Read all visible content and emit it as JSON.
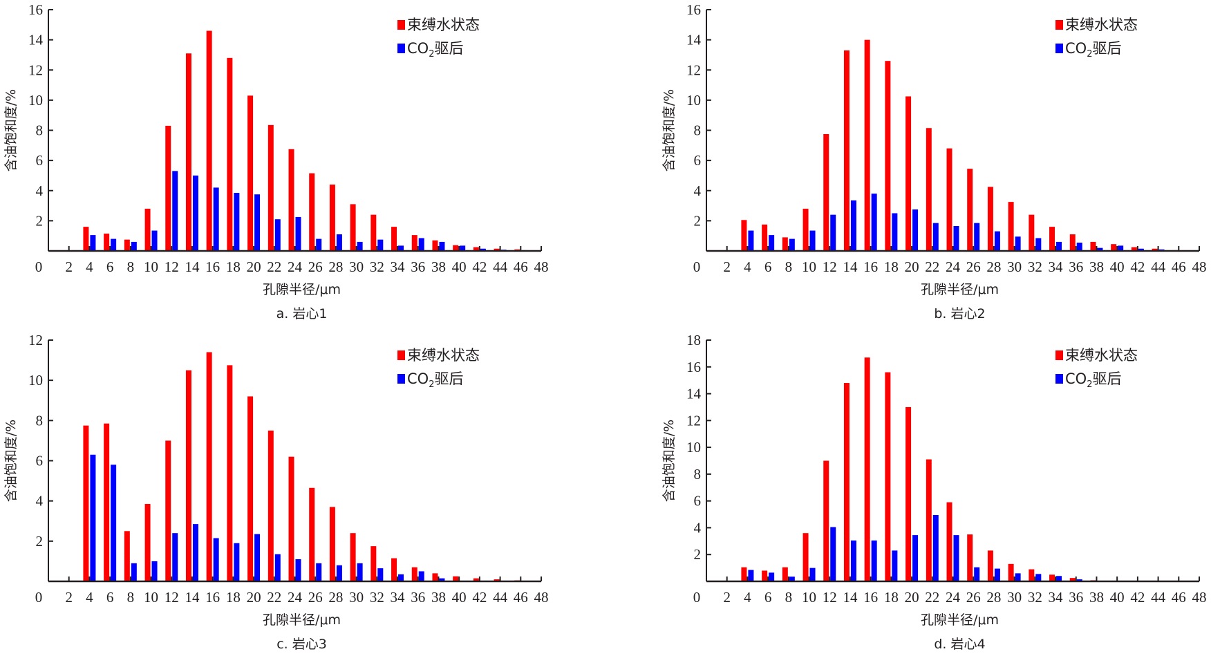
{
  "legend": {
    "series1_label": "束缚水状态",
    "series2_label_main": "CO",
    "series2_label_sub": "2",
    "series2_label_tail": "驱后"
  },
  "colors": {
    "series1": "#ff0000",
    "series2": "#0000ff",
    "axis": "#231f20"
  },
  "chart_data": [
    {
      "id": "a",
      "type": "bar",
      "caption": "a. 岩心1",
      "xlabel": "孔隙半径/μm",
      "ylabel": "含油饱和度/%",
      "xlim": [
        0,
        48
      ],
      "ylim": [
        0,
        16
      ],
      "yticks": [
        2,
        4,
        6,
        8,
        10,
        12,
        14,
        16
      ],
      "xticks": [
        0,
        2,
        4,
        6,
        8,
        10,
        12,
        14,
        16,
        18,
        20,
        22,
        24,
        26,
        28,
        30,
        32,
        34,
        36,
        38,
        40,
        42,
        44,
        46,
        48
      ],
      "legend_position": "top-right",
      "categories": [
        4,
        6,
        8,
        10,
        12,
        14,
        16,
        18,
        20,
        22,
        24,
        26,
        28,
        30,
        32,
        34,
        36,
        38,
        40,
        42,
        44,
        46,
        48
      ],
      "series": [
        {
          "name": "束缚水状态",
          "values": [
            1.6,
            1.15,
            0.75,
            2.8,
            8.3,
            13.1,
            14.6,
            12.8,
            10.3,
            8.35,
            6.75,
            5.15,
            4.4,
            3.1,
            2.4,
            1.6,
            1.05,
            0.7,
            0.38,
            0.25,
            0.15,
            0.1,
            0.02
          ]
        },
        {
          "name": "CO2驱后",
          "values": [
            1.05,
            0.8,
            0.6,
            1.35,
            5.3,
            5.0,
            4.2,
            3.85,
            3.75,
            2.1,
            2.25,
            0.8,
            1.1,
            0.6,
            0.75,
            0.35,
            0.85,
            0.6,
            0.35,
            0.15,
            0.08,
            0.05,
            0
          ]
        }
      ]
    },
    {
      "id": "b",
      "type": "bar",
      "caption": "b. 岩心2",
      "xlabel": "孔隙半径/μm",
      "ylabel": "含油饱和度/%",
      "xlim": [
        0,
        48
      ],
      "ylim": [
        0,
        16
      ],
      "yticks": [
        2,
        4,
        6,
        8,
        10,
        12,
        14,
        16
      ],
      "xticks": [
        0,
        2,
        4,
        6,
        8,
        10,
        12,
        14,
        16,
        18,
        20,
        22,
        24,
        26,
        28,
        30,
        32,
        34,
        36,
        38,
        40,
        42,
        44,
        46,
        48
      ],
      "legend_position": "top-right",
      "categories": [
        4,
        6,
        8,
        10,
        12,
        14,
        16,
        18,
        20,
        22,
        24,
        26,
        28,
        30,
        32,
        34,
        36,
        38,
        40,
        42,
        44,
        46
      ],
      "series": [
        {
          "name": "束缚水状态",
          "values": [
            2.05,
            1.75,
            0.9,
            2.8,
            7.75,
            13.3,
            14.0,
            12.6,
            10.25,
            8.15,
            6.8,
            5.45,
            4.25,
            3.25,
            2.4,
            1.6,
            1.1,
            0.6,
            0.45,
            0.25,
            0.15,
            0.05
          ]
        },
        {
          "name": "CO2驱后",
          "values": [
            1.35,
            1.05,
            0.8,
            1.35,
            2.4,
            3.35,
            3.8,
            2.5,
            2.75,
            1.85,
            1.65,
            1.85,
            1.3,
            0.95,
            0.85,
            0.6,
            0.55,
            0.2,
            0.35,
            0.15,
            0.1,
            0
          ]
        }
      ]
    },
    {
      "id": "c",
      "type": "bar",
      "caption": "c. 岩心3",
      "xlabel": "孔隙半径/μm",
      "ylabel": "含油饱和度/%",
      "xlim": [
        0,
        48
      ],
      "ylim": [
        0,
        12
      ],
      "yticks": [
        2,
        4,
        6,
        8,
        10,
        12
      ],
      "xticks": [
        0,
        2,
        4,
        6,
        8,
        10,
        12,
        14,
        16,
        18,
        20,
        22,
        24,
        26,
        28,
        30,
        32,
        34,
        36,
        38,
        40,
        42,
        44,
        46,
        48
      ],
      "legend_position": "top-right",
      "categories": [
        4,
        6,
        8,
        10,
        12,
        14,
        16,
        18,
        20,
        22,
        24,
        26,
        28,
        30,
        32,
        34,
        36,
        38,
        40,
        42,
        44,
        46,
        48
      ],
      "series": [
        {
          "name": "束缚水状态",
          "values": [
            7.75,
            7.85,
            2.5,
            3.85,
            7.0,
            10.5,
            11.4,
            10.75,
            9.2,
            7.5,
            6.2,
            4.65,
            3.7,
            2.4,
            1.75,
            1.15,
            0.7,
            0.4,
            0.25,
            0.15,
            0.1,
            0.05,
            0.02
          ]
        },
        {
          "name": "CO2驱后",
          "values": [
            6.3,
            5.8,
            0.9,
            1.0,
            2.4,
            2.85,
            2.15,
            1.9,
            2.35,
            1.35,
            1.1,
            0.9,
            0.8,
            0.9,
            0.65,
            0.35,
            0.5,
            0.15,
            0,
            0.02,
            0,
            0,
            0
          ]
        }
      ]
    },
    {
      "id": "d",
      "type": "bar",
      "caption": "d. 岩心4",
      "xlabel": "孔隙半径/μm",
      "ylabel": "含油饱和度/%",
      "xlim": [
        0,
        48
      ],
      "ylim": [
        0,
        18
      ],
      "yticks": [
        2,
        4,
        6,
        8,
        10,
        12,
        14,
        16,
        18
      ],
      "xticks": [
        0,
        2,
        4,
        6,
        8,
        10,
        12,
        14,
        16,
        18,
        20,
        22,
        24,
        26,
        28,
        30,
        32,
        34,
        36,
        38,
        40,
        42,
        44,
        46,
        48
      ],
      "legend_position": "top-right",
      "categories": [
        4,
        6,
        8,
        10,
        12,
        14,
        16,
        18,
        20,
        22,
        24,
        26,
        28,
        30,
        32,
        34,
        36,
        38,
        40
      ],
      "series": [
        {
          "name": "束缚水状态",
          "values": [
            1.05,
            0.8,
            1.05,
            3.6,
            9.0,
            14.8,
            16.7,
            15.6,
            13.0,
            9.1,
            5.9,
            3.5,
            2.3,
            1.3,
            0.9,
            0.5,
            0.25,
            0.08,
            0.05
          ]
        },
        {
          "name": "CO2驱后",
          "values": [
            0.85,
            0.65,
            0.35,
            1.0,
            4.05,
            3.05,
            3.05,
            2.3,
            3.45,
            4.95,
            3.45,
            1.05,
            0.95,
            0.6,
            0.55,
            0.4,
            0.15,
            0,
            0
          ]
        }
      ]
    }
  ]
}
